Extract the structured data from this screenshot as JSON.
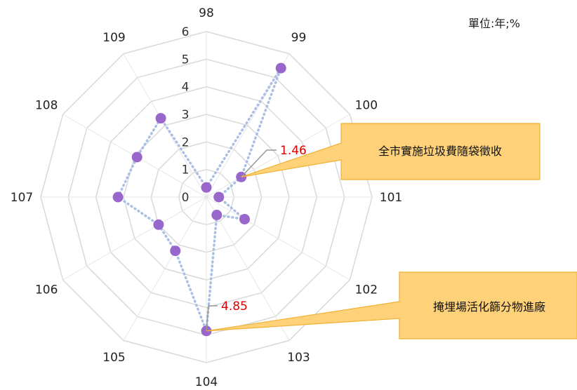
{
  "chart_data": {
    "type": "radar",
    "unit_label": "單位:年;%",
    "categories": [
      "98",
      "99",
      "100",
      "101",
      "102",
      "103",
      "104",
      "105",
      "106",
      "107",
      "108",
      "109"
    ],
    "radial_ticks": [
      "0",
      "1",
      "2",
      "3",
      "4",
      "5",
      "6"
    ],
    "rlim": [
      0,
      6
    ],
    "values": [
      0.35,
      5.4,
      1.46,
      0.45,
      1.6,
      0.75,
      4.85,
      2.25,
      2.0,
      3.2,
      2.9,
      3.3
    ],
    "series_color": "#9966cc",
    "line_color": "#a9bfe3",
    "annotations": [
      {
        "category": "100",
        "value_label": "1.46",
        "callout_text": "全市實施垃圾費隨袋徵收"
      },
      {
        "category": "104",
        "value_label": "4.85",
        "callout_text": "掩埋場活化篩分物進廠"
      }
    ],
    "callout_fill": "#ffd27a",
    "annotation_color": "#e00000"
  }
}
